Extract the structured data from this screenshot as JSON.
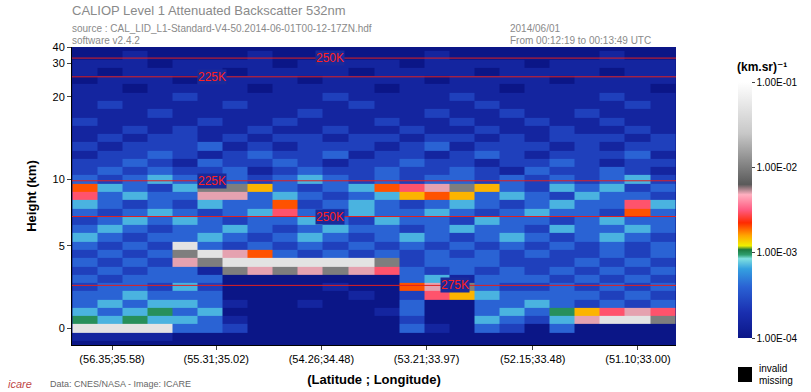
{
  "chart_data": {
    "type": "heatmap",
    "title": "CALIOP Level 1 Attenuated Backscatter 532nm",
    "subtitle": [
      "source : CAL_LID_L1-Standard-V4-50.2014-06-01T00-12-17ZN.hdf",
      "software v2.4.2"
    ],
    "annotations": [
      "2014/06/01",
      "From 00:12:19 to 00:13:49 UTC",
      "Data: CNES/NASA - Image: ICARE",
      "icare",
      "invalid",
      "missing"
    ],
    "x_label": "(Latitude ; Longitude)",
    "y_label": "Height (km)",
    "xlim": [
      56.75,
      50.72
    ],
    "xticks": [
      {
        "value": 56.35,
        "label": "(56.35;35.58)"
      },
      {
        "value": 55.31,
        "label": "(55.31;35.02)"
      },
      {
        "value": 54.26,
        "label": "(54.26;34.48)"
      },
      {
        "value": 53.21,
        "label": "(53.21;33.97)"
      },
      {
        "value": 52.15,
        "label": "(52.15;33.48)"
      },
      {
        "value": 51.1,
        "label": "(51.10;33.00)"
      }
    ],
    "ylim": [
      -1,
      40
    ],
    "yticks": [
      0,
      5,
      10,
      20,
      30,
      40
    ],
    "x": [
      56.62,
      56.37,
      56.12,
      55.87,
      55.62,
      55.37,
      55.12,
      54.87,
      54.62,
      54.37,
      54.12,
      53.86,
      53.61,
      53.36,
      53.11,
      52.86,
      52.61,
      52.36,
      52.11,
      51.86,
      51.61,
      51.36,
      51.1,
      50.85
    ],
    "y": [
      -1,
      -0.5,
      0,
      0.5,
      1,
      1.5,
      2,
      2.5,
      3,
      3.5,
      4,
      4.5,
      5,
      5.625,
      6.25,
      6.875,
      7.5,
      8.125,
      8.75,
      9.375,
      10,
      11,
      12,
      13,
      14,
      15,
      16,
      17,
      18,
      19,
      20,
      22.5,
      25,
      27.5,
      30,
      35,
      40
    ],
    "cells": [
      [
        0.0001,
        0.0001,
        0.0001,
        0.0001,
        0.0001,
        0.0001,
        0.0001,
        0.0001,
        0.0001,
        0.0001,
        0.0001,
        0.0001,
        0.0001,
        0.0001,
        0.0001,
        0.0001,
        0.0001,
        0.0001,
        0.0001,
        0.0001,
        0.0001,
        0.0001,
        0.0001,
        0.0001
      ],
      [
        0.00015,
        0.00015,
        0.00015,
        0.00015,
        0.0001,
        0.0001,
        0.0001,
        0.0001,
        0.0001,
        0.0001,
        0.0001,
        0.0001,
        0.0001,
        0.0001,
        0.0001,
        0.0001,
        0.0001,
        0.0001,
        0.0001,
        0.0001,
        0.0001,
        0.0001,
        0.0001,
        0.0001
      ],
      [
        0.05,
        0.05,
        0.05,
        0.05,
        0.0004,
        0.0004,
        0.00025,
        0.0001,
        0.0001,
        0.0001,
        0.0001,
        0.0001,
        0.0001,
        0.0004,
        0.00015,
        0.0001,
        0.0004,
        0.00025,
        0.0001,
        0.0004,
        0.0001,
        0.0001,
        0.0001,
        0.0001
      ],
      [
        0.001,
        0.0007,
        0.001,
        0.0007,
        0.0007,
        0.0004,
        0.00015,
        0.0001,
        0.0001,
        0.0001,
        0.0001,
        0.0001,
        0.0001,
        0.00025,
        0.0001,
        0.0001,
        0.0007,
        0.0004,
        0.00025,
        0.0007,
        0.005,
        0.05,
        0.05,
        0.01
      ],
      [
        0.0007,
        0.0004,
        0.0007,
        0.001,
        0.0004,
        0.0007,
        0.0001,
        0.0001,
        0.0001,
        0.0001,
        0.0001,
        0.0001,
        0.00015,
        0.0004,
        0.0001,
        0.0001,
        0.0004,
        0.0007,
        0.0004,
        0.001,
        0.0015,
        0.003,
        0.005,
        0.003
      ],
      [
        0.0004,
        0.0007,
        0.0004,
        0.0007,
        0.0007,
        0.0004,
        0.00015,
        0.0001,
        0.0001,
        0.00015,
        0.0001,
        0.0001,
        0.0001,
        0.0004,
        0.0001,
        0.0001,
        0.0004,
        0.0004,
        0.0007,
        0.0004,
        0.00025,
        0.0004,
        0.00025,
        0.0004
      ],
      [
        0.0004,
        0.0004,
        0.0007,
        0.0004,
        0.0004,
        0.0004,
        0.0001,
        0.0001,
        0.0001,
        0.0001,
        0.0001,
        0.00015,
        0.0001,
        0.00025,
        0.003,
        0.0015,
        0.0007,
        0.0004,
        0.0004,
        0.0004,
        0.0004,
        0.00025,
        0.0004,
        0.00025
      ],
      [
        0.00025,
        0.0004,
        0.0004,
        0.00025,
        0.0007,
        0.00025,
        0.0001,
        0.0001,
        0.0001,
        0.0001,
        0.00015,
        0.0001,
        0.0001,
        0.002,
        0.005,
        0.01,
        0.0004,
        0.00025,
        0.00025,
        0.0004,
        0.00025,
        0.0004,
        0.00025,
        0.0004
      ],
      [
        0.0004,
        0.00025,
        0.0004,
        0.0004,
        0.0004,
        0.0004,
        0.0001,
        0.0001,
        0.0001,
        0.0001,
        0.0001,
        0.0001,
        0.0001,
        0.0004,
        0.0007,
        0.00015,
        0.0004,
        0.0004,
        0.0004,
        0.00025,
        0.0004,
        0.00025,
        0.0004,
        0.00025
      ],
      [
        0.00025,
        0.0004,
        0.00025,
        0.0004,
        0.0004,
        0.00015,
        0.01,
        0.005,
        0.01,
        0.005,
        0.01,
        0.005,
        0.003,
        0.0004,
        0.00025,
        0.0004,
        0.00025,
        0.0004,
        0.00025,
        0.0004,
        0.00025,
        0.0004,
        0.00025,
        0.0004
      ],
      [
        0.0004,
        0.00025,
        0.0004,
        0.00025,
        0.005,
        0.01,
        0.05,
        0.05,
        0.05,
        0.05,
        0.05,
        0.05,
        0.01,
        0.00025,
        0.0004,
        0.0004,
        0.0004,
        0.00025,
        0.00025,
        0.00025,
        0.0004,
        0.00025,
        0.0004,
        0.00025
      ],
      [
        0.00025,
        0.0004,
        0.00025,
        0.0004,
        0.01,
        0.05,
        0.005,
        0.002,
        0.0004,
        0.00025,
        0.0004,
        0.00025,
        0.0004,
        0.00025,
        0.0004,
        0.00025,
        0.0004,
        0.00025,
        0.0004,
        0.00025,
        0.00025,
        0.0004,
        0.00025,
        0.0004
      ],
      [
        0.0004,
        0.00025,
        0.0004,
        0.00025,
        0.05,
        0.0004,
        0.00025,
        0.0004,
        0.00025,
        0.0004,
        0.00025,
        0.0004,
        0.00025,
        0.0004,
        0.00025,
        0.0004,
        0.00025,
        0.0004,
        0.00025,
        0.0004,
        0.00025,
        0.0004,
        0.00025,
        0.0004
      ],
      [
        0.0007,
        0.0004,
        0.00025,
        0.0004,
        0.0004,
        0.0007,
        0.0004,
        0.00025,
        0.0004,
        0.0007,
        0.0004,
        0.00025,
        0.0004,
        0.0007,
        0.0004,
        0.00025,
        0.0004,
        0.0007,
        0.0004,
        0.00025,
        0.0004,
        0.0007,
        0.0004,
        0.00025
      ],
      [
        0.0004,
        0.0007,
        0.0004,
        0.00025,
        0.0004,
        0.0004,
        0.0007,
        0.0004,
        0.00025,
        0.0004,
        0.0007,
        0.0004,
        0.0004,
        0.00025,
        0.0004,
        0.0007,
        0.0004,
        0.0004,
        0.00025,
        0.0007,
        0.0004,
        0.0004,
        0.0007,
        0.0004
      ],
      [
        0.00025,
        0.0004,
        0.0007,
        0.0004,
        0.0007,
        0.0004,
        0.00025,
        0.0004,
        0.0004,
        0.0007,
        0.0004,
        0.00025,
        0.0007,
        0.0004,
        0.0004,
        0.00025,
        0.0007,
        0.0004,
        0.0004,
        0.00025,
        0.0004,
        0.0007,
        0.0004,
        0.0004
      ],
      [
        0.0004,
        0.00025,
        0.0004,
        0.0007,
        0.0004,
        0.00025,
        0.0004,
        0.0007,
        0.003,
        0.0004,
        0.00025,
        0.0007,
        0.0004,
        0.0004,
        0.0007,
        0.0004,
        0.00025,
        0.0004,
        0.0007,
        0.0004,
        0.0004,
        0.00025,
        0.002,
        0.0004
      ],
      [
        0.0007,
        0.0004,
        0.00025,
        0.0004,
        0.00025,
        0.0007,
        0.0004,
        0.0004,
        0.002,
        0.00025,
        0.0004,
        0.0007,
        0.0004,
        0.00025,
        0.0004,
        0.0007,
        0.0004,
        0.00025,
        0.0004,
        0.0007,
        0.0004,
        0.0004,
        0.003,
        0.0007
      ],
      [
        0.003,
        0.0004,
        0.0007,
        0.0004,
        0.0004,
        0.005,
        0.005,
        0.0004,
        0.0007,
        0.0004,
        0.00025,
        0.0004,
        0.0007,
        0.0015,
        0.002,
        0.0015,
        0.0004,
        0.0007,
        0.0004,
        0.00025,
        0.0007,
        0.0004,
        0.0004,
        0.00025
      ],
      [
        0.002,
        0.0007,
        0.0004,
        0.00025,
        0.0007,
        0.01,
        0.01,
        0.0015,
        0.0004,
        0.00025,
        0.0004,
        0.0007,
        0.002,
        0.003,
        0.005,
        0.01,
        0.0015,
        0.0004,
        0.00025,
        0.0007,
        0.0004,
        0.0007,
        0.00025,
        0.0004
      ],
      [
        0.0004,
        0.00025,
        0.0004,
        0.0007,
        0.0004,
        0.00025,
        0.0004,
        0.00025,
        0.0004,
        0.0007,
        0.0004,
        0.00025,
        0.0004,
        0.00025,
        0.0004,
        0.0004,
        0.00025,
        0.0004,
        0.00025,
        0.0004,
        0.00025,
        0.0004,
        0.0007,
        0.00025
      ],
      [
        0.00025,
        0.0004,
        0.00025,
        0.0004,
        0.00025,
        0.00025,
        0.0004,
        0.00015,
        0.00025,
        0.0004,
        0.00025,
        0.00025,
        0.0004,
        0.00025,
        0.00025,
        0.0004,
        0.00025,
        0.00015,
        0.0004,
        0.00025,
        0.00025,
        0.0004,
        0.00025,
        0.00015
      ],
      [
        0.00025,
        0.00025,
        0.0004,
        0.00025,
        0.00015,
        0.0004,
        0.00025,
        0.00025,
        0.0004,
        0.00025,
        0.00015,
        0.00025,
        0.00025,
        0.0004,
        0.00025,
        0.00025,
        0.00015,
        0.00025,
        0.00025,
        0.0004,
        0.00025,
        0.00015,
        0.00025,
        0.00025
      ],
      [
        0.00015,
        0.00025,
        0.00025,
        0.0004,
        0.00025,
        0.00015,
        0.00025,
        0.0004,
        0.00025,
        0.00025,
        0.0004,
        0.00015,
        0.00025,
        0.00025,
        0.00015,
        0.00025,
        0.0004,
        0.00025,
        0.00015,
        0.00025,
        0.00025,
        0.00025,
        0.0004,
        0.00015
      ],
      [
        0.00025,
        0.00015,
        0.00025,
        0.00025,
        0.00025,
        0.0004,
        0.00015,
        0.00025,
        0.00015,
        0.00025,
        0.00025,
        0.00025,
        0.00015,
        0.00025,
        0.0004,
        0.00015,
        0.00025,
        0.00025,
        0.00025,
        0.00015,
        0.00025,
        0.00015,
        0.00025,
        0.00025
      ],
      [
        0.00015,
        0.00025,
        0.00015,
        0.00025,
        0.00025,
        0.00015,
        0.00025,
        0.00015,
        0.00025,
        0.00025,
        0.00015,
        0.00025,
        0.00025,
        0.00015,
        0.00025,
        0.00025,
        0.00015,
        0.00025,
        0.00015,
        0.00025,
        0.00025,
        0.00025,
        0.00015,
        0.00025
      ],
      [
        0.00015,
        0.00015,
        0.00025,
        0.00015,
        0.00025,
        0.00015,
        0.00015,
        0.00025,
        0.00015,
        0.00015,
        0.00025,
        0.00015,
        0.00015,
        0.00025,
        0.00015,
        0.00015,
        0.00025,
        0.00015,
        0.00015,
        0.00025,
        0.00015,
        0.00015,
        0.00025,
        0.00015
      ],
      [
        0.00025,
        0.00015,
        0.00015,
        0.00015,
        0.00015,
        0.00025,
        0.00015,
        0.00015,
        0.00025,
        0.00015,
        0.00015,
        0.00015,
        0.00025,
        0.00015,
        0.00015,
        0.00025,
        0.00015,
        0.00015,
        0.00025,
        0.00015,
        0.00015,
        0.00025,
        0.00015,
        0.00015
      ],
      [
        0.00015,
        0.00015,
        0.00015,
        0.00025,
        0.00015,
        0.00015,
        0.00015,
        0.00015,
        0.00015,
        0.00025,
        0.00015,
        0.00015,
        0.00015,
        0.00015,
        0.00025,
        0.00015,
        0.00015,
        0.00025,
        0.00015,
        0.00015,
        0.00025,
        0.00015,
        0.00015,
        0.00015
      ],
      [
        0.00015,
        0.00025,
        0.00015,
        0.00015,
        0.00015,
        0.00015,
        0.00025,
        0.00015,
        0.00015,
        0.00015,
        0.00015,
        0.00025,
        0.00015,
        0.00015,
        0.00015,
        0.00015,
        0.00025,
        0.00015,
        0.00015,
        0.00015,
        0.00015,
        0.00015,
        0.00025,
        0.00015
      ],
      [
        0.00015,
        0.00015,
        0.00015,
        0.00015,
        0.00025,
        0.00015,
        0.00015,
        0.00015,
        0.00015,
        0.00015,
        0.00025,
        0.00015,
        0.00015,
        0.00015,
        0.00015,
        0.00025,
        0.00015,
        0.00015,
        0.00015,
        0.00015,
        0.00015,
        0.00025,
        0.00015,
        0.00015
      ],
      [
        0.00015,
        0.00015,
        0.0001,
        0.00015,
        0.00015,
        0.00015,
        0.00015,
        0.0001,
        0.00015,
        0.00015,
        0.00015,
        0.00015,
        0.0001,
        0.00015,
        0.00015,
        0.00015,
        0.00015,
        0.0001,
        0.00015,
        0.00015,
        0.00015,
        0.00015,
        0.00015,
        0.0001
      ],
      [
        0.0001,
        0.00015,
        0.00015,
        0.00015,
        0.0001,
        0.00015,
        0.00015,
        0.00015,
        0.00015,
        0.0001,
        0.00015,
        0.00015,
        0.00015,
        0.00015,
        0.0001,
        0.00015,
        0.00015,
        0.00015,
        0.00015,
        0.0001,
        0.00015,
        0.00015,
        0.00015,
        0.00015
      ],
      [
        0.00015,
        0.0001,
        0.00015,
        0.00015,
        0.00015,
        0.00015,
        0.0001,
        0.00015,
        0.00015,
        0.00015,
        0.00015,
        0.0001,
        0.00015,
        0.00015,
        0.00015,
        0.00015,
        0.0001,
        0.00015,
        0.00015,
        0.00015,
        0.00015,
        0.0001,
        0.00015,
        0.00015
      ],
      [
        0.00015,
        0.00015,
        0.00015,
        0.0001,
        0.00015,
        0.00015,
        0.00015,
        0.00015,
        0.0001,
        0.00015,
        0.00015,
        0.00015,
        0.00015,
        0.0001,
        0.00015,
        0.00015,
        0.00015,
        0.00015,
        0.0001,
        0.00015,
        0.00015,
        0.00015,
        0.00015,
        0.00015
      ],
      [
        0.0001,
        0.0001,
        0.00015,
        0.0001,
        0.0001,
        0.0001,
        0.0001,
        0.00015,
        0.0001,
        0.0001,
        0.0001,
        0.0001,
        0.0001,
        0.0001,
        0.00015,
        0.0001,
        0.0001,
        0.0001,
        0.0001,
        0.0001,
        0.0001,
        0.00015,
        0.0001,
        0.0001
      ],
      [
        0.0001,
        0.0001,
        0.0001,
        0.0001,
        0.0001,
        0.0001,
        0.0001,
        0.0001,
        0.0001,
        0.0001,
        0.0001,
        0.0001,
        0.0001,
        0.0001,
        0.0001,
        0.0001,
        0.0001,
        0.0001,
        0.0001,
        0.0001,
        0.0001,
        0.0001,
        0.0001,
        0.0001
      ]
    ],
    "colorbar": {
      "title": "(km.sr)⁻¹",
      "log": true,
      "range": [
        0.0001,
        0.1
      ],
      "ticks": [
        {
          "value": 0.0001,
          "label": "1.00E-04"
        },
        {
          "value": 0.001,
          "label": "1.00E-03"
        },
        {
          "value": 0.01,
          "label": "1.00E-02"
        },
        {
          "value": 0.1,
          "label": "1.00E-01"
        }
      ]
    },
    "isotherms": [
      {
        "label": "250K",
        "height": 33.3,
        "label_x": 54.17
      },
      {
        "label": "225K",
        "height": 26,
        "label_x": 55.35
      },
      {
        "label": "225K",
        "height": 9.9,
        "label_x": 55.35
      },
      {
        "label": "250K",
        "height": 7.2,
        "label_x": 54.17
      },
      {
        "label": "275K",
        "height": 2.6,
        "label_x": 52.93
      }
    ],
    "grid": false
  }
}
